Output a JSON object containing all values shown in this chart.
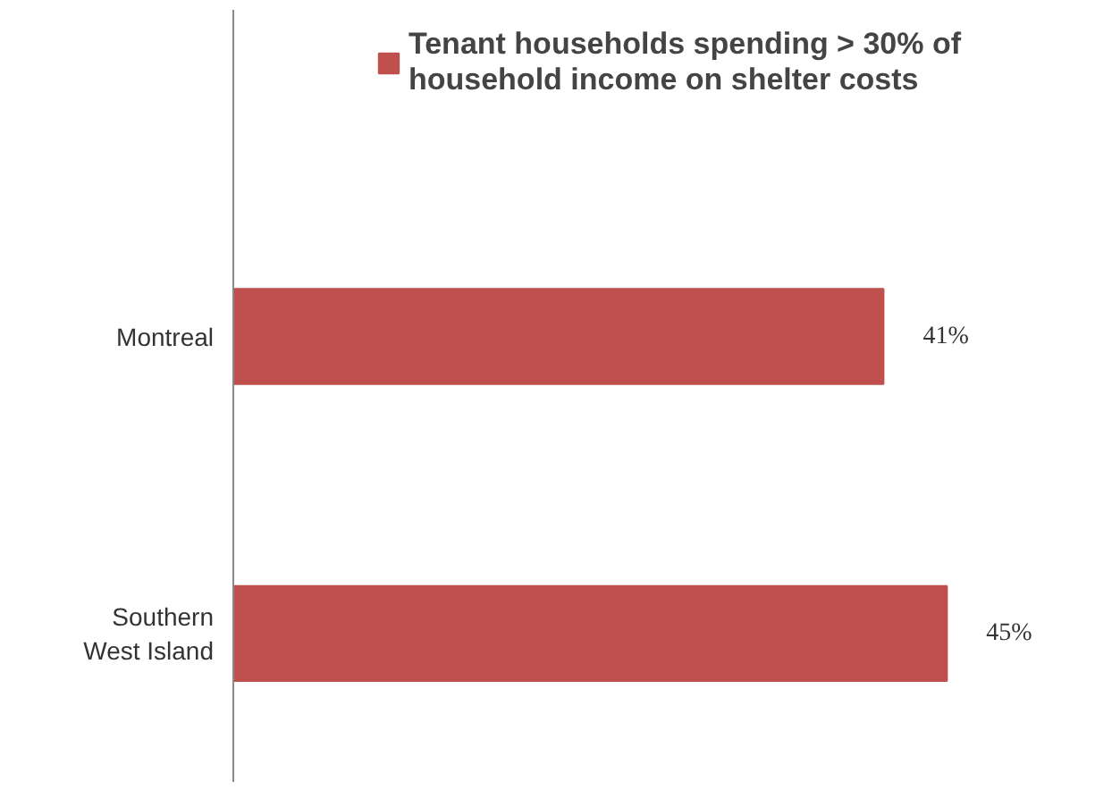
{
  "chart_data": {
    "type": "bar",
    "orientation": "horizontal",
    "categories": [
      "Montreal",
      "Southern\nWest Island"
    ],
    "series": [
      {
        "name": "Tenant households spending > 30% of\nhousehold income on shelter costs",
        "color": "#c0504d",
        "values": [
          41,
          45
        ],
        "value_labels": [
          "41%",
          "45%"
        ]
      }
    ],
    "legend": "top",
    "grid": false,
    "tick_labels": "y"
  }
}
